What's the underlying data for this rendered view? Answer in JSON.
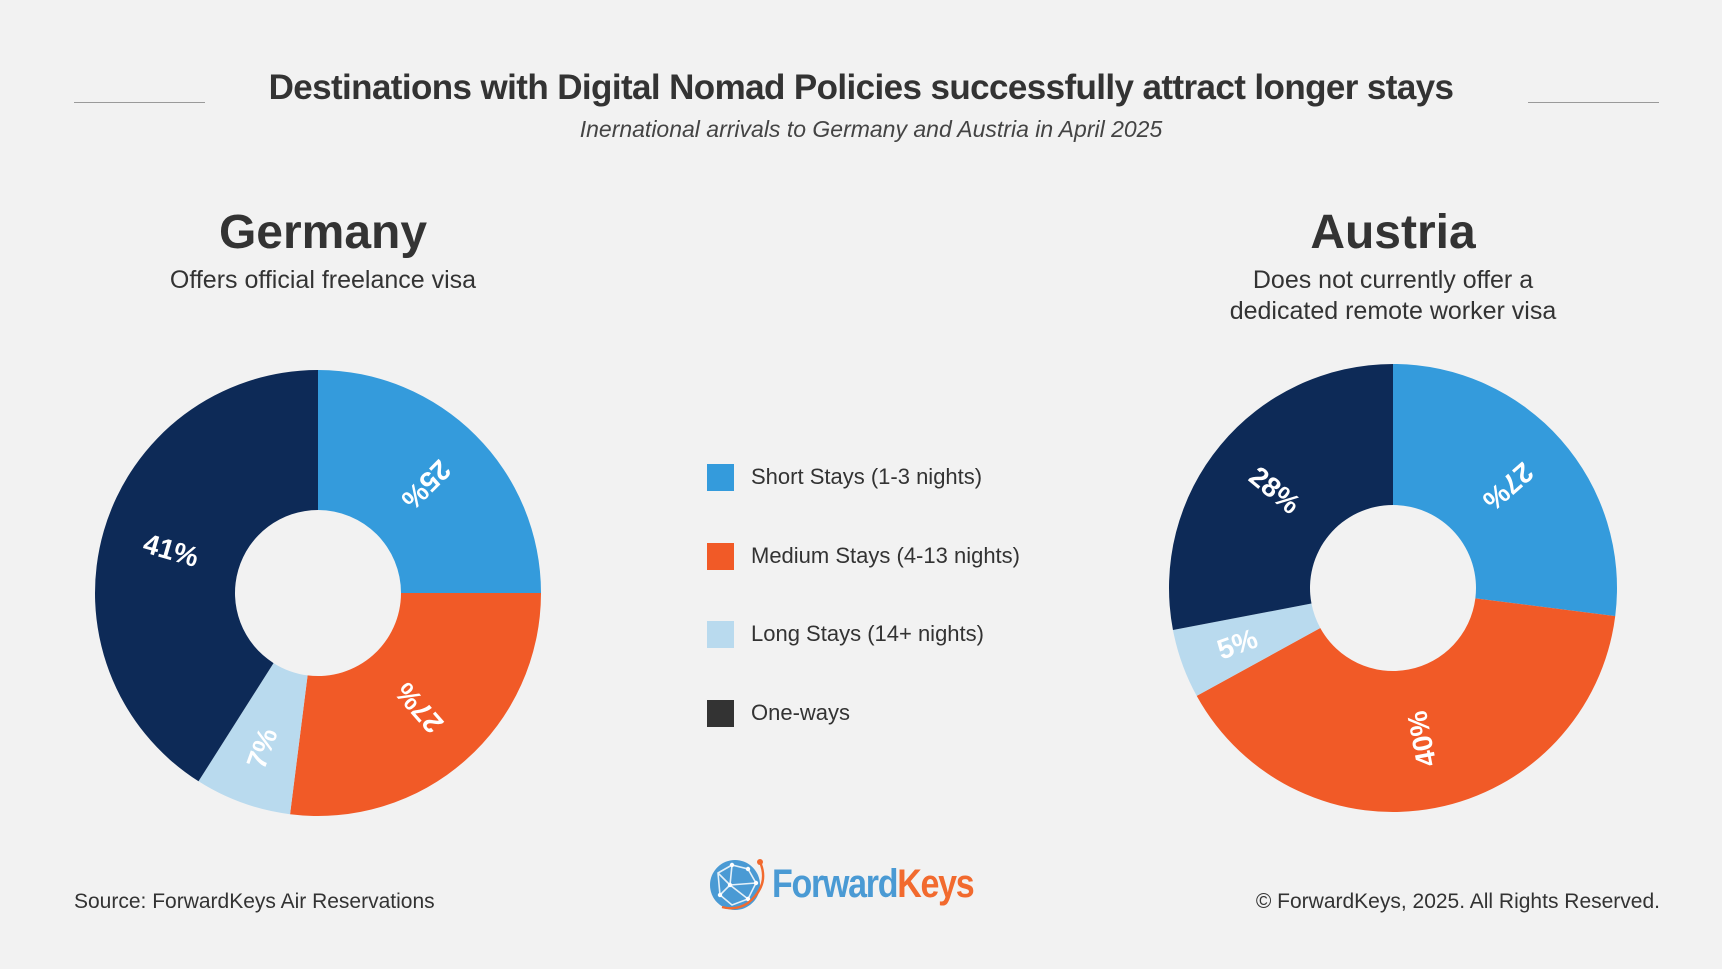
{
  "header": {
    "title": "Destinations with Digital Nomad Policies successfully attract longer stays",
    "subtitle": "Inernational arrivals to Germany and Austria in April 2025"
  },
  "colors": {
    "short": "#349bdc",
    "medium": "#f15a27",
    "long": "#b9daee",
    "oneways_chart": "#0d2a57",
    "oneways_legend": "#333333",
    "background": "#f2f2f2",
    "label": "#ffffff"
  },
  "legend": {
    "items": [
      {
        "key": "short",
        "label": "Short Stays (1-3 nights)",
        "color": "#349bdc"
      },
      {
        "key": "medium",
        "label": "Medium Stays (4-13 nights)",
        "color": "#f15a27"
      },
      {
        "key": "long",
        "label": "Long Stays (14+ nights)",
        "color": "#b9daee"
      },
      {
        "key": "oneways",
        "label": "One-ways",
        "color": "#333333"
      }
    ]
  },
  "chart_data": [
    {
      "type": "pie",
      "donut": true,
      "title": "Germany",
      "subtitle": "Offers official freelance visa",
      "categories": [
        "Short Stays (1-3 nights)",
        "Medium Stays (4-13 nights)",
        "Long Stays (14+ nights)",
        "One-ways"
      ],
      "values": [
        25,
        27,
        7,
        41
      ],
      "labels": [
        "25%",
        "27%",
        "7%",
        "41%"
      ],
      "start": "12 o'clock, clockwise"
    },
    {
      "type": "pie",
      "donut": true,
      "title": "Austria",
      "subtitle": "Does not currently offer a dedicated remote worker visa",
      "subtitle_lines": [
        "Does not currently offer a",
        "dedicated remote worker visa"
      ],
      "categories": [
        "Short Stays (1-3 nights)",
        "Medium Stays (4-13 nights)",
        "Long Stays (14+ nights)",
        "One-ways"
      ],
      "values": [
        27,
        40,
        5,
        28
      ],
      "labels": [
        "27%",
        "40%",
        "5%",
        "28%"
      ],
      "start": "12 o'clock, clockwise"
    }
  ],
  "footer": {
    "source": "Source: ForwardKeys Air Reservations",
    "copyright": "© ForwardKeys, 2025. All Rights Reserved.",
    "logo_part1": "Forward",
    "logo_part2": "Keys"
  }
}
